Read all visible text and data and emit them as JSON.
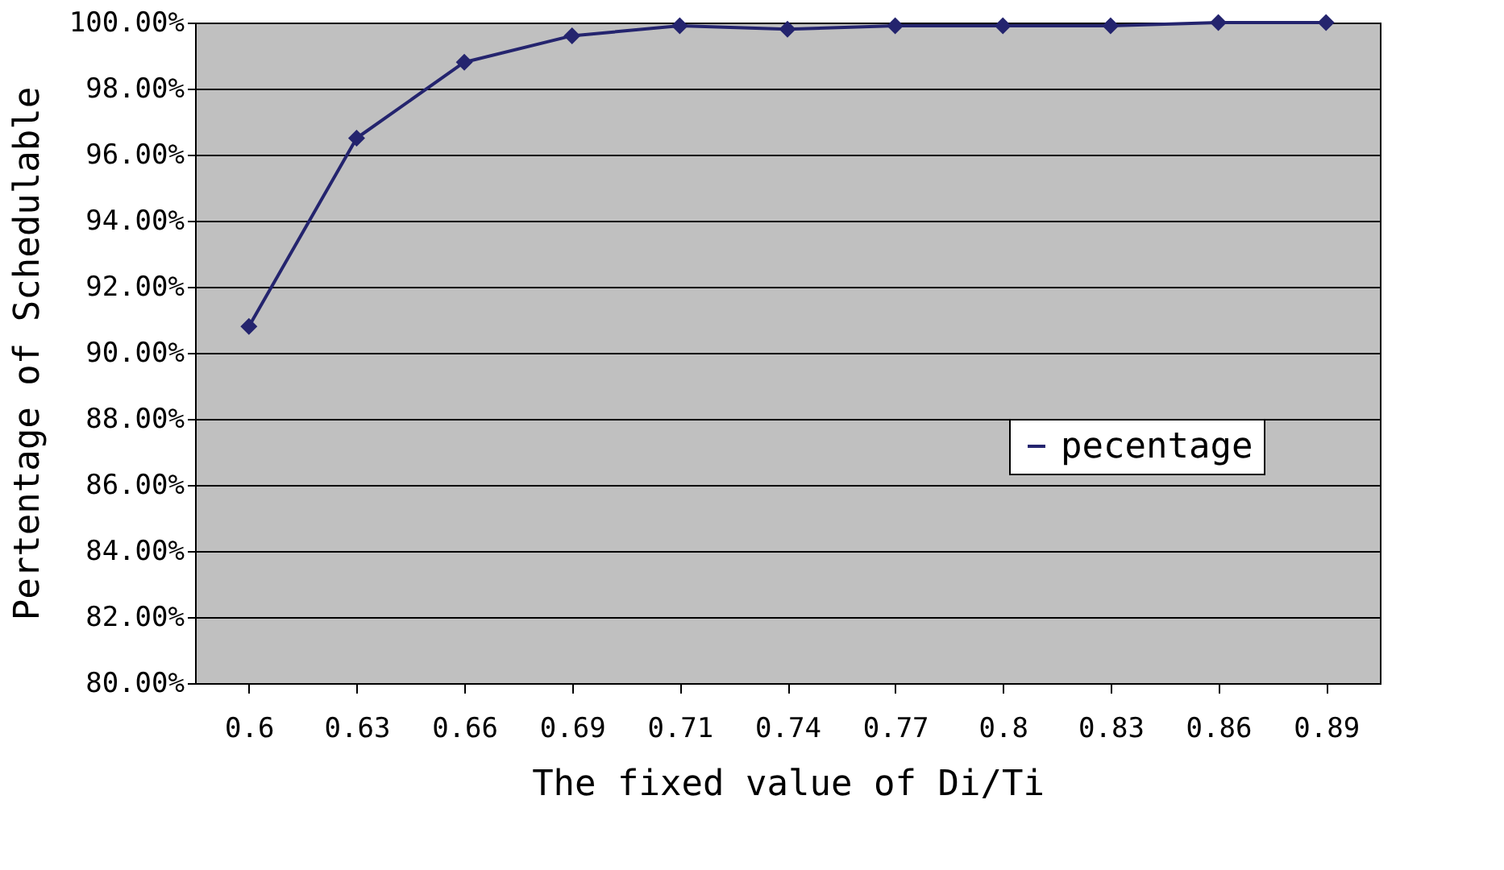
{
  "chart_data": {
    "type": "line",
    "xlabel": "The fixed value of Di/Ti",
    "ylabel": "Pertentage of Schedulable",
    "categories": [
      "0.6",
      "0.63",
      "0.66",
      "0.69",
      "0.71",
      "0.74",
      "0.77",
      "0.8",
      "0.83",
      "0.86",
      "0.89"
    ],
    "series": [
      {
        "name": "pecentage",
        "color": "#24246e",
        "values": [
          90.8,
          96.5,
          98.8,
          99.6,
          99.9,
          99.8,
          99.9,
          99.9,
          99.9,
          100,
          100
        ]
      }
    ],
    "ylim": [
      80,
      100
    ],
    "yticks": [
      {
        "value": 80,
        "label": "80.00%"
      },
      {
        "value": 82,
        "label": "82.00%"
      },
      {
        "value": 84,
        "label": "84.00%"
      },
      {
        "value": 86,
        "label": "86.00%"
      },
      {
        "value": 88,
        "label": "88.00%"
      },
      {
        "value": 90,
        "label": "90.00%"
      },
      {
        "value": 92,
        "label": "92.00%"
      },
      {
        "value": 94,
        "label": "94.00%"
      },
      {
        "value": 96,
        "label": "96.00%"
      },
      {
        "value": 98,
        "label": "98.00%"
      },
      {
        "value": 100,
        "label": "100.00%"
      }
    ],
    "grid": "y",
    "legend": "right",
    "marker": "diamond",
    "line_style": "solid"
  }
}
